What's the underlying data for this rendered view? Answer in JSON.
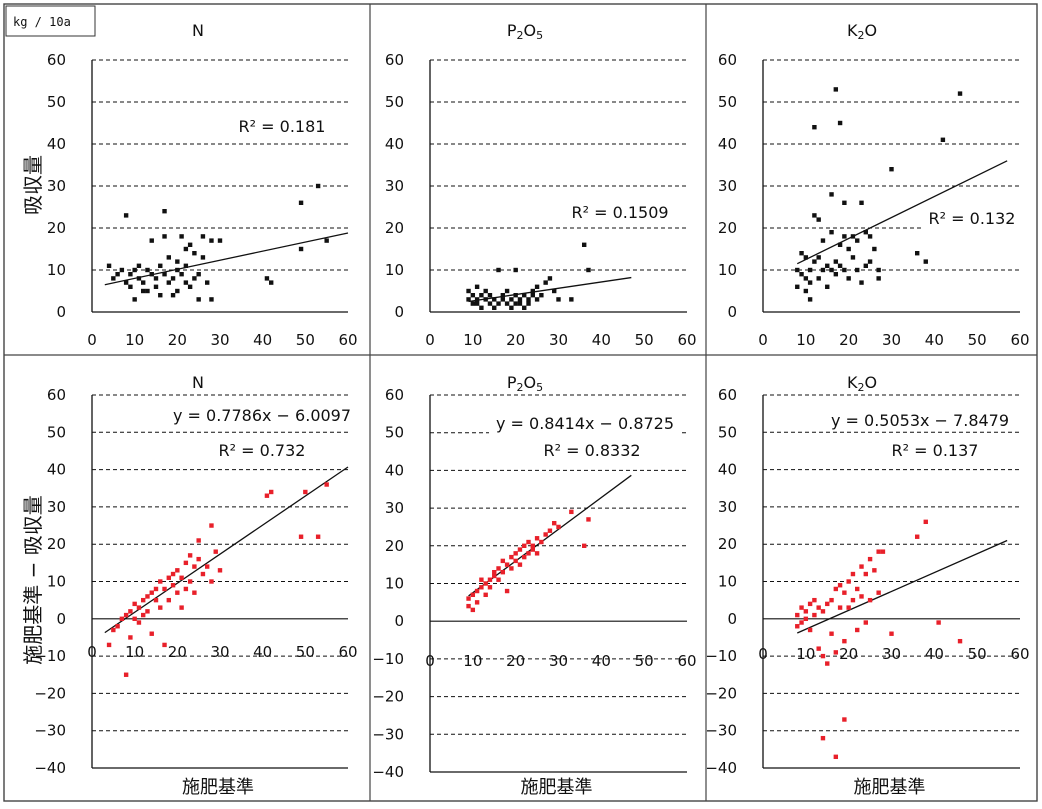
{
  "unit_label": "kg / 10a",
  "row_ylabels": [
    "吸収量",
    "施肥基準 − 吸収量"
  ],
  "xlabel": "施肥基準",
  "chart_data": [
    {
      "type": "scatter",
      "title": "N",
      "ylim": [
        0,
        60
      ],
      "xlim": [
        0,
        60
      ],
      "yticks": [
        0,
        10,
        20,
        30,
        40,
        50,
        60
      ],
      "xticks": [
        0,
        10,
        20,
        30,
        40,
        50,
        60
      ],
      "ylabel": "吸収量",
      "xlabel": "",
      "point_color": "#111111",
      "grid": "dashed",
      "annotations": [
        "R² = 0.181"
      ],
      "trendline": {
        "x0": 3,
        "y0": 6.5,
        "x1": 60,
        "y1": 18.8
      },
      "points": [
        [
          4,
          11
        ],
        [
          5,
          8
        ],
        [
          6,
          9
        ],
        [
          7,
          10
        ],
        [
          8,
          23
        ],
        [
          8,
          7
        ],
        [
          9,
          6
        ],
        [
          9,
          9
        ],
        [
          10,
          3
        ],
        [
          10,
          10
        ],
        [
          11,
          11
        ],
        [
          11,
          8
        ],
        [
          12,
          7
        ],
        [
          12,
          5
        ],
        [
          13,
          10
        ],
        [
          13,
          5
        ],
        [
          14,
          9
        ],
        [
          14,
          17
        ],
        [
          15,
          8
        ],
        [
          15,
          6
        ],
        [
          16,
          11
        ],
        [
          16,
          4
        ],
        [
          17,
          24
        ],
        [
          17,
          9
        ],
        [
          17,
          18
        ],
        [
          18,
          7
        ],
        [
          18,
          13
        ],
        [
          19,
          8
        ],
        [
          19,
          4
        ],
        [
          20,
          5
        ],
        [
          20,
          10
        ],
        [
          20,
          12
        ],
        [
          21,
          9
        ],
        [
          21,
          18
        ],
        [
          22,
          7
        ],
        [
          22,
          11
        ],
        [
          22,
          15
        ],
        [
          23,
          6
        ],
        [
          23,
          16
        ],
        [
          24,
          14
        ],
        [
          24,
          8
        ],
        [
          25,
          9
        ],
        [
          25,
          3
        ],
        [
          26,
          18
        ],
        [
          26,
          13
        ],
        [
          27,
          7
        ],
        [
          28,
          17
        ],
        [
          28,
          3
        ],
        [
          30,
          17
        ],
        [
          41,
          8
        ],
        [
          42,
          7
        ],
        [
          49,
          26
        ],
        [
          49,
          15
        ],
        [
          53,
          30
        ],
        [
          55,
          17
        ]
      ]
    },
    {
      "type": "scatter",
      "title": "P2O5",
      "ylim": [
        0,
        60
      ],
      "xlim": [
        0,
        60
      ],
      "yticks": [
        0,
        10,
        20,
        30,
        40,
        50,
        60
      ],
      "xticks": [
        0,
        10,
        20,
        30,
        40,
        50,
        60
      ],
      "point_color": "#111111",
      "grid": "dashed",
      "annotations": [
        "R² = 0.1509"
      ],
      "trendline": {
        "x0": 9,
        "y0": 2.5,
        "x1": 47,
        "y1": 8.2
      },
      "points": [
        [
          9,
          5
        ],
        [
          9,
          3
        ],
        [
          10,
          4
        ],
        [
          10,
          2
        ],
        [
          11,
          6
        ],
        [
          11,
          3
        ],
        [
          11,
          2
        ],
        [
          12,
          4
        ],
        [
          12,
          1
        ],
        [
          13,
          3
        ],
        [
          13,
          5
        ],
        [
          14,
          2
        ],
        [
          14,
          4
        ],
        [
          15,
          3
        ],
        [
          15,
          1
        ],
        [
          16,
          10
        ],
        [
          16,
          2
        ],
        [
          17,
          4
        ],
        [
          17,
          3
        ],
        [
          18,
          2
        ],
        [
          18,
          5
        ],
        [
          19,
          1
        ],
        [
          19,
          3
        ],
        [
          20,
          2
        ],
        [
          20,
          4
        ],
        [
          20,
          10
        ],
        [
          21,
          3
        ],
        [
          21,
          2
        ],
        [
          22,
          1
        ],
        [
          22,
          4
        ],
        [
          23,
          3
        ],
        [
          23,
          2
        ],
        [
          24,
          5
        ],
        [
          24,
          4
        ],
        [
          25,
          3
        ],
        [
          25,
          6
        ],
        [
          26,
          4
        ],
        [
          27,
          7
        ],
        [
          28,
          8
        ],
        [
          29,
          5
        ],
        [
          30,
          3
        ],
        [
          33,
          3
        ],
        [
          36,
          16
        ],
        [
          37,
          10
        ]
      ]
    },
    {
      "type": "scatter",
      "title": "K2O",
      "ylim": [
        0,
        60
      ],
      "xlim": [
        0,
        60
      ],
      "yticks": [
        0,
        10,
        20,
        30,
        40,
        50,
        60
      ],
      "xticks": [
        0,
        10,
        20,
        30,
        40,
        50,
        60
      ],
      "point_color": "#111111",
      "grid": "dashed",
      "annotations": [
        "R² = 0.132"
      ],
      "trendline": {
        "x0": 8,
        "y0": 11.5,
        "x1": 57,
        "y1": 36
      },
      "points": [
        [
          8,
          10
        ],
        [
          8,
          6
        ],
        [
          9,
          9
        ],
        [
          9,
          14
        ],
        [
          10,
          5
        ],
        [
          10,
          8
        ],
        [
          10,
          13
        ],
        [
          11,
          3
        ],
        [
          11,
          7
        ],
        [
          11,
          10
        ],
        [
          12,
          12
        ],
        [
          12,
          23
        ],
        [
          12,
          44
        ],
        [
          13,
          22
        ],
        [
          13,
          8
        ],
        [
          13,
          13
        ],
        [
          14,
          10
        ],
        [
          14,
          17
        ],
        [
          15,
          11
        ],
        [
          15,
          6
        ],
        [
          16,
          28
        ],
        [
          16,
          19
        ],
        [
          16,
          10
        ],
        [
          17,
          53
        ],
        [
          17,
          12
        ],
        [
          17,
          9
        ],
        [
          18,
          16
        ],
        [
          18,
          45
        ],
        [
          18,
          11
        ],
        [
          19,
          26
        ],
        [
          19,
          10
        ],
        [
          19,
          18
        ],
        [
          20,
          15
        ],
        [
          20,
          8
        ],
        [
          21,
          18
        ],
        [
          21,
          13
        ],
        [
          22,
          10
        ],
        [
          22,
          17
        ],
        [
          23,
          26
        ],
        [
          23,
          7
        ],
        [
          24,
          19
        ],
        [
          24,
          11
        ],
        [
          25,
          18
        ],
        [
          25,
          12
        ],
        [
          26,
          15
        ],
        [
          27,
          8
        ],
        [
          27,
          10
        ],
        [
          30,
          34
        ],
        [
          36,
          14
        ],
        [
          38,
          12
        ],
        [
          42,
          41
        ],
        [
          46,
          52
        ]
      ]
    },
    {
      "type": "scatter",
      "title": "N",
      "ylim": [
        -40,
        60
      ],
      "xlim": [
        0,
        60
      ],
      "yticks": [
        -40,
        -30,
        -20,
        -10,
        0,
        10,
        20,
        30,
        40,
        50,
        60
      ],
      "xticks": [
        0,
        10,
        20,
        30,
        40,
        50,
        60
      ],
      "ylabel": "施肥基準 − 吸収量",
      "xlabel": "施肥基準",
      "point_color": "#e8202a",
      "grid": "dashed",
      "annotations": [
        "y = 0.7786x − 6.0097",
        "R² = 0.732"
      ],
      "trendline": {
        "x0": 3,
        "y0": -3.7,
        "x1": 60,
        "y1": 40.7
      },
      "points": [
        [
          4,
          -7
        ],
        [
          5,
          -3
        ],
        [
          6,
          -2
        ],
        [
          7,
          0
        ],
        [
          8,
          -15
        ],
        [
          8,
          1
        ],
        [
          9,
          2
        ],
        [
          9,
          -5
        ],
        [
          10,
          0
        ],
        [
          10,
          4
        ],
        [
          11,
          3
        ],
        [
          11,
          -1
        ],
        [
          12,
          1
        ],
        [
          12,
          5
        ],
        [
          13,
          2
        ],
        [
          13,
          6
        ],
        [
          14,
          -4
        ],
        [
          14,
          7
        ],
        [
          15,
          5
        ],
        [
          15,
          8
        ],
        [
          16,
          3
        ],
        [
          16,
          10
        ],
        [
          17,
          -7
        ],
        [
          17,
          8
        ],
        [
          18,
          11
        ],
        [
          18,
          5
        ],
        [
          19,
          12
        ],
        [
          19,
          9
        ],
        [
          20,
          13
        ],
        [
          20,
          7
        ],
        [
          21,
          11
        ],
        [
          21,
          3
        ],
        [
          22,
          15
        ],
        [
          22,
          8
        ],
        [
          23,
          17
        ],
        [
          23,
          10
        ],
        [
          24,
          7
        ],
        [
          24,
          14
        ],
        [
          25,
          16
        ],
        [
          25,
          21
        ],
        [
          26,
          12
        ],
        [
          27,
          14
        ],
        [
          28,
          10
        ],
        [
          28,
          25
        ],
        [
          29,
          18
        ],
        [
          30,
          13
        ],
        [
          41,
          33
        ],
        [
          42,
          34
        ],
        [
          49,
          22
        ],
        [
          50,
          34
        ],
        [
          53,
          22
        ],
        [
          55,
          36
        ]
      ]
    },
    {
      "type": "scatter",
      "title": "P2O5",
      "ylim": [
        -40,
        60
      ],
      "xlim": [
        0,
        60
      ],
      "yticks": [
        -40,
        -30,
        -20,
        -10,
        0,
        10,
        20,
        30,
        40,
        50,
        60
      ],
      "xticks": [
        0,
        10,
        20,
        30,
        40,
        50,
        60
      ],
      "xlabel": "施肥基準",
      "point_color": "#e8202a",
      "grid": "dashed",
      "annotations": [
        "y = 0.8414x − 0.8725",
        "R² = 0.8332"
      ],
      "trendline": {
        "x0": 9,
        "y0": 6.7,
        "x1": 47,
        "y1": 38.7
      },
      "points": [
        [
          9,
          4
        ],
        [
          9,
          6
        ],
        [
          10,
          3
        ],
        [
          10,
          7
        ],
        [
          11,
          8
        ],
        [
          11,
          5
        ],
        [
          12,
          9
        ],
        [
          12,
          11
        ],
        [
          13,
          10
        ],
        [
          13,
          7
        ],
        [
          14,
          11
        ],
        [
          14,
          9
        ],
        [
          15,
          12
        ],
        [
          15,
          13
        ],
        [
          16,
          11
        ],
        [
          16,
          14
        ],
        [
          17,
          13
        ],
        [
          17,
          16
        ],
        [
          18,
          15
        ],
        [
          18,
          8
        ],
        [
          19,
          14
        ],
        [
          19,
          17
        ],
        [
          20,
          16
        ],
        [
          20,
          18
        ],
        [
          21,
          15
        ],
        [
          21,
          19
        ],
        [
          22,
          17
        ],
        [
          22,
          20
        ],
        [
          23,
          18
        ],
        [
          23,
          21
        ],
        [
          24,
          20
        ],
        [
          24,
          19
        ],
        [
          25,
          22
        ],
        [
          25,
          18
        ],
        [
          26,
          21
        ],
        [
          27,
          23
        ],
        [
          28,
          24
        ],
        [
          29,
          26
        ],
        [
          30,
          25
        ],
        [
          33,
          29
        ],
        [
          36,
          20
        ],
        [
          37,
          27
        ]
      ]
    },
    {
      "type": "scatter",
      "title": "K2O",
      "ylim": [
        -40,
        60
      ],
      "xlim": [
        0,
        60
      ],
      "yticks": [
        -40,
        -30,
        -20,
        -10,
        0,
        10,
        20,
        30,
        40,
        50,
        60
      ],
      "xticks": [
        0,
        10,
        20,
        30,
        40,
        50,
        60
      ],
      "xlabel": "施肥基準",
      "point_color": "#e8202a",
      "grid": "dashed",
      "annotations": [
        "y = 0.5053x − 7.8479",
        "R² = 0.137"
      ],
      "trendline": {
        "x0": 8,
        "y0": -3.8,
        "x1": 57,
        "y1": 21
      },
      "points": [
        [
          8,
          -2
        ],
        [
          8,
          1
        ],
        [
          9,
          3
        ],
        [
          9,
          -1
        ],
        [
          10,
          0
        ],
        [
          10,
          2
        ],
        [
          11,
          4
        ],
        [
          11,
          -3
        ],
        [
          12,
          1
        ],
        [
          12,
          5
        ],
        [
          13,
          -8
        ],
        [
          13,
          3
        ],
        [
          14,
          -32
        ],
        [
          14,
          -10
        ],
        [
          14,
          2
        ],
        [
          15,
          4
        ],
        [
          15,
          -12
        ],
        [
          16,
          5
        ],
        [
          16,
          -4
        ],
        [
          17,
          8
        ],
        [
          17,
          -37
        ],
        [
          17,
          -9
        ],
        [
          18,
          9
        ],
        [
          18,
          3
        ],
        [
          19,
          -27
        ],
        [
          19,
          -6
        ],
        [
          19,
          7
        ],
        [
          20,
          10
        ],
        [
          20,
          3
        ],
        [
          21,
          12
        ],
        [
          21,
          5
        ],
        [
          22,
          8
        ],
        [
          22,
          -3
        ],
        [
          23,
          14
        ],
        [
          23,
          6
        ],
        [
          24,
          12
        ],
        [
          24,
          -1
        ],
        [
          25,
          16
        ],
        [
          25,
          5
        ],
        [
          26,
          13
        ],
        [
          27,
          18
        ],
        [
          27,
          7
        ],
        [
          28,
          18
        ],
        [
          30,
          -4
        ],
        [
          36,
          22
        ],
        [
          38,
          26
        ],
        [
          41,
          -1
        ],
        [
          46,
          -6
        ]
      ]
    }
  ]
}
